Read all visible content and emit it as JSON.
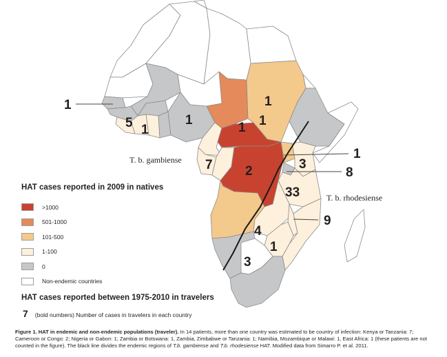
{
  "figure": {
    "legend_title": "HAT cases reported in 2009 in natives",
    "legend": [
      {
        "label": ">1000",
        "color": "#c8432f"
      },
      {
        "label": "501-1000",
        "color": "#e58a5a"
      },
      {
        "label": "101-500",
        "color": "#f4c98c"
      },
      {
        "label": "1-100",
        "color": "#fdf0dc"
      },
      {
        "label": "0",
        "color": "#c6c7c9"
      },
      {
        "label": "Non-endemic countries",
        "color": "#ffffff"
      }
    ],
    "traveler_title": "HAT cases reported between 1975-2010 in travelers",
    "traveler_example_number": "7",
    "traveler_example_text": "(bold numbers)  Number of cases in travelers in each country",
    "regions": {
      "gambiense": "T. b. gambiense",
      "rhodesiense": "T. b. rhodesiense"
    },
    "traveler_counts": [
      {
        "country": "Senegal/Gambia",
        "count": "1"
      },
      {
        "country": "Ivory Coast",
        "count": "5"
      },
      {
        "country": "Ghana",
        "count": "1"
      },
      {
        "country": "Nigeria",
        "count": "1"
      },
      {
        "country": "Chad",
        "count": "1"
      },
      {
        "country": "Sudan",
        "count": "1"
      },
      {
        "country": "Central African Republic",
        "count": "1"
      },
      {
        "country": "Gabon/Congo",
        "count": "7"
      },
      {
        "country": "DR Congo",
        "count": "2"
      },
      {
        "country": "Uganda",
        "count": "1"
      },
      {
        "country": "Kenya",
        "count": "3"
      },
      {
        "country": "Rwanda/Burundi",
        "count": "8"
      },
      {
        "country": "Tanzania",
        "count": "33"
      },
      {
        "country": "Malawi",
        "count": "9"
      },
      {
        "country": "Zambia",
        "count": "4"
      },
      {
        "country": "Zimbabwe",
        "count": "1"
      },
      {
        "country": "Botswana",
        "count": "3"
      }
    ],
    "caption": {
      "bold": "Figure 1. HAT in endemic and non-endemic populations (traveler).",
      "text1": " In 14 patients, more than one country was estimated to be country of infection: Kenya or Tanzania: 7; Cameroon or Congo: 2; Nigeria or Gabon: 1; Zambia or Botswana: 1, Zambia, Zimbabwe or Tanzania: 1; Namibia, Mozambique or Malawi: 1, East Africa: 1 (these patients are not counted in the figure). The black line divides the endemic regions of ",
      "italic1": "T.b. gambiense",
      "text2": " and ",
      "italic2": "T.b. rhodesiense",
      "text3": " HAT. Modified data from Simarro P. et al. 2011."
    }
  }
}
